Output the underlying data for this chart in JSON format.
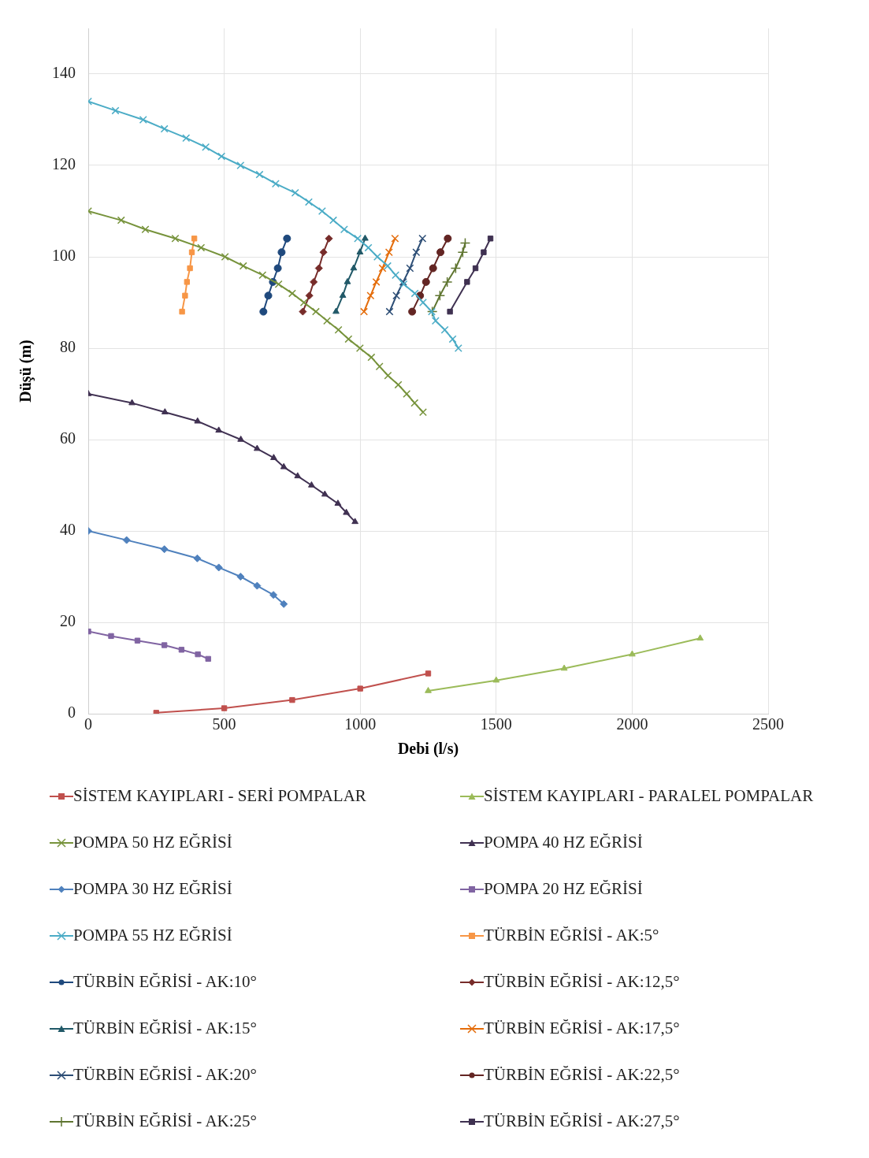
{
  "chart_data": {
    "type": "line",
    "xlabel": "Debi (l/s)",
    "ylabel": "Düşü (m)",
    "xlim": [
      0,
      2500
    ],
    "xticks": [
      0,
      500,
      1000,
      1500,
      2000,
      2500
    ],
    "ylim": [
      0,
      150
    ],
    "yticks": [
      0,
      20,
      40,
      60,
      80,
      100,
      120,
      140
    ],
    "grid": true,
    "legend": "bottom",
    "series": [
      {
        "name": "SİSTEM KAYIPLARI - SERİ POMPALAR",
        "color": "#c0504d",
        "marker": "square",
        "x": [
          250,
          500,
          750,
          1000,
          1250
        ],
        "values": [
          0.2,
          1.2,
          3,
          5.5,
          8.8
        ]
      },
      {
        "name": "SİSTEM KAYIPLARI - PARALEL POMPALAR",
        "color": "#9bbb59",
        "marker": "triangle",
        "x": [
          1250,
          1500,
          1750,
          2000,
          2250
        ],
        "values": [
          5,
          7.3,
          9.9,
          13,
          16.5
        ]
      },
      {
        "name": "POMPA 50 HZ EĞRİSİ",
        "color": "#77933c",
        "marker": "cross",
        "x": [
          0,
          121,
          210,
          320,
          415,
          503,
          570,
          641,
          700,
          750,
          793,
          837,
          878,
          920,
          957,
          999,
          1041,
          1071,
          1102,
          1140,
          1171,
          1200,
          1231
        ],
        "values": [
          110,
          108,
          106,
          104,
          102,
          100,
          98,
          96,
          94,
          92,
          90,
          88,
          86,
          84,
          82,
          80,
          78,
          76,
          74,
          72,
          70,
          68,
          66
        ]
      },
      {
        "name": "POMPA 40 HZ EĞRİSİ",
        "color": "#403152",
        "marker": "triangle",
        "x": [
          0,
          161,
          282,
          402,
          480,
          561,
          621,
          682,
          719,
          770,
          821,
          870,
          918,
          949,
          981
        ],
        "values": [
          70,
          68,
          66,
          64,
          62,
          60,
          58,
          56,
          54,
          52,
          50,
          48,
          46,
          44,
          42
        ]
      },
      {
        "name": "POMPA 30 HZ EĞRİSİ",
        "color": "#4f81bd",
        "marker": "diamond",
        "x": [
          0,
          141,
          280,
          401,
          480,
          560,
          621,
          681,
          719
        ],
        "values": [
          40,
          38,
          36,
          34,
          32,
          30,
          28,
          26,
          24
        ]
      },
      {
        "name": "POMPA 20 HZ EĞRİSİ",
        "color": "#8064a2",
        "marker": "square",
        "x": [
          0,
          84,
          181,
          280,
          343,
          403,
          441
        ],
        "values": [
          18,
          17,
          16,
          15,
          14,
          13,
          12
        ]
      },
      {
        "name": "POMPA 55 HZ EĞRİSİ",
        "color": "#4bacc6",
        "marker": "cross",
        "x": [
          0,
          100,
          202,
          280,
          360,
          432,
          490,
          560,
          630,
          689,
          761,
          811,
          860,
          901,
          941,
          991,
          1030,
          1063,
          1101,
          1130,
          1160,
          1201,
          1231,
          1263,
          1277,
          1311,
          1340,
          1361
        ],
        "values": [
          134,
          132,
          130,
          128,
          126,
          124,
          122,
          120,
          118,
          116,
          114,
          112,
          110,
          108,
          106,
          104,
          102,
          100,
          98,
          96,
          94,
          92,
          90,
          88,
          86,
          84,
          82,
          80
        ]
      },
      {
        "name": "TÜRBİN EĞRİSİ - AK:5°",
        "color": "#f79646",
        "marker": "square",
        "x": [
          345,
          356,
          363,
          374,
          381,
          390
        ],
        "values": [
          88,
          91.5,
          94.5,
          97.5,
          101,
          104
        ]
      },
      {
        "name": "TÜRBİN EĞRİSİ - AK:10°",
        "color": "#1f497d",
        "marker": "circle",
        "x": [
          644,
          662,
          679,
          697,
          711,
          731
        ],
        "values": [
          88,
          91.5,
          94.5,
          97.5,
          101,
          104
        ]
      },
      {
        "name": "TÜRBİN EĞRİSİ - AK:12,5°",
        "color": "#772c2a",
        "marker": "diamond",
        "x": [
          789,
          813,
          829,
          848,
          865,
          885
        ],
        "values": [
          88,
          91.5,
          94.5,
          97.5,
          101,
          104
        ]
      },
      {
        "name": "TÜRBİN EĞRİSİ - AK:15°",
        "color": "#215968",
        "marker": "triangle",
        "x": [
          911,
          936,
          953,
          976,
          999,
          1018
        ],
        "values": [
          88,
          91.5,
          94.5,
          97.5,
          101,
          104
        ]
      },
      {
        "name": "TÜRBİN EĞRİSİ - AK:17,5°",
        "color": "#e46c0a",
        "marker": "cross",
        "x": [
          1014,
          1038,
          1059,
          1082,
          1106,
          1128
        ],
        "values": [
          88,
          91.5,
          94.5,
          97.5,
          101,
          104
        ]
      },
      {
        "name": "TÜRBİN EĞRİSİ - AK:20°",
        "color": "#2c4d75",
        "marker": "cross",
        "x": [
          1108,
          1133,
          1158,
          1183,
          1206,
          1229
        ],
        "values": [
          88,
          91.5,
          94.5,
          97.5,
          101,
          104
        ]
      },
      {
        "name": "TÜRBİN EĞRİSİ - AK:22,5°",
        "color": "#632523",
        "marker": "circle",
        "x": [
          1191,
          1220,
          1242,
          1268,
          1295,
          1322
        ],
        "values": [
          88,
          91.5,
          94.5,
          97.5,
          101,
          104
        ]
      },
      {
        "name": "TÜRBİN EĞRİSİ - AK:25°",
        "color": "#5f7530",
        "marker": "plus",
        "x": [
          1265,
          1293,
          1320,
          1351,
          1377,
          1386
        ],
        "values": [
          88,
          91.5,
          94.5,
          97.5,
          101,
          103
        ]
      },
      {
        "name": "TÜRBİN EĞRİSİ - AK:27,5°",
        "color": "#3f3151",
        "marker": "square",
        "x": [
          1330,
          1393,
          1424,
          1454,
          1479
        ],
        "values": [
          88,
          94.5,
          97.5,
          101,
          104
        ]
      }
    ]
  }
}
